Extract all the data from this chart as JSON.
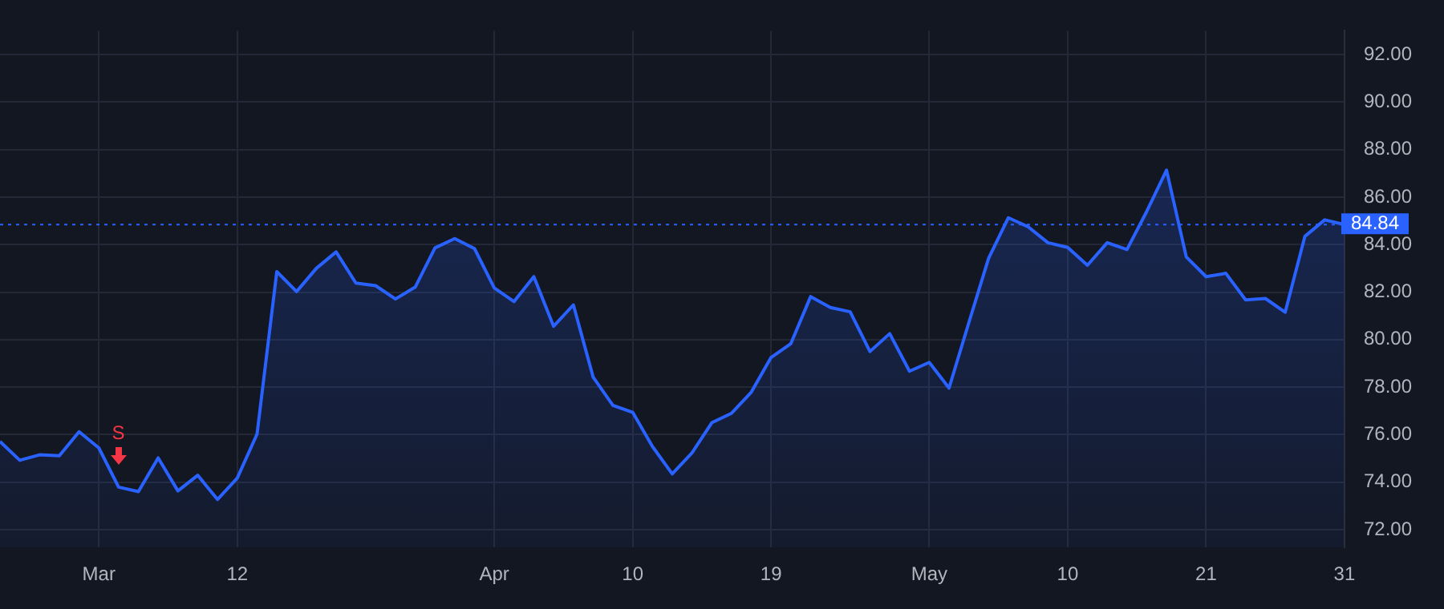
{
  "chart_data": {
    "type": "area",
    "categories": [
      null,
      null,
      null,
      null,
      null,
      "Mar",
      null,
      null,
      null,
      null,
      null,
      null,
      "12",
      null,
      null,
      null,
      null,
      null,
      null,
      null,
      null,
      null,
      null,
      null,
      null,
      "Apr",
      null,
      null,
      null,
      null,
      null,
      null,
      "10",
      null,
      null,
      null,
      null,
      null,
      null,
      "19",
      null,
      null,
      null,
      null,
      null,
      null,
      null,
      "May",
      null,
      null,
      null,
      null,
      null,
      null,
      "10",
      null,
      null,
      null,
      null,
      null,
      null,
      "21",
      null,
      null,
      null,
      null,
      null,
      null,
      "31"
    ],
    "series": [
      {
        "color": "#2962ff",
        "values": [
          75.71,
          74.92,
          75.15,
          75.11,
          76.12,
          75.44,
          73.79,
          73.6,
          75.02,
          73.63,
          74.29,
          73.27,
          74.17,
          76.02,
          82.86,
          82.02,
          83.0,
          83.69,
          82.38,
          82.27,
          81.71,
          82.21,
          83.86,
          84.25,
          83.83,
          82.17,
          81.6,
          82.65,
          80.56,
          81.46,
          78.42,
          77.23,
          76.94,
          75.5,
          74.35,
          75.23,
          76.5,
          76.9,
          77.79,
          79.25,
          79.83,
          81.81,
          81.35,
          81.17,
          79.5,
          80.25,
          78.67,
          79.04,
          77.96,
          80.71,
          83.42,
          85.13,
          84.75,
          84.08,
          83.88,
          83.13,
          84.08,
          83.79,
          85.4,
          87.13,
          83.48,
          82.65,
          82.79,
          81.67,
          81.73,
          81.15,
          84.35,
          85.04,
          84.84
        ]
      }
    ],
    "ylim": [
      71.25,
      93
    ],
    "yticks": [
      {
        "value": 72,
        "label": "72.00"
      },
      {
        "value": 74,
        "label": "74.00"
      },
      {
        "value": 76,
        "label": "76.00"
      },
      {
        "value": 78,
        "label": "78.00"
      },
      {
        "value": 80,
        "label": "80.00"
      },
      {
        "value": 82,
        "label": "82.00"
      },
      {
        "value": 84,
        "label": "84.00"
      },
      {
        "value": 86,
        "label": "86.00"
      },
      {
        "value": 88,
        "label": "88.00"
      },
      {
        "value": 90,
        "label": "90.00"
      },
      {
        "value": 92,
        "label": "92.00"
      }
    ],
    "ref_lines": [
      {
        "axis": "y",
        "value": 84.84,
        "label": "84.84",
        "color": "#2962ff",
        "line_style": "dotted"
      }
    ],
    "annotations": [
      "S"
    ],
    "grid": true,
    "legend": false,
    "marker": "none",
    "line_style": "solid"
  }
}
